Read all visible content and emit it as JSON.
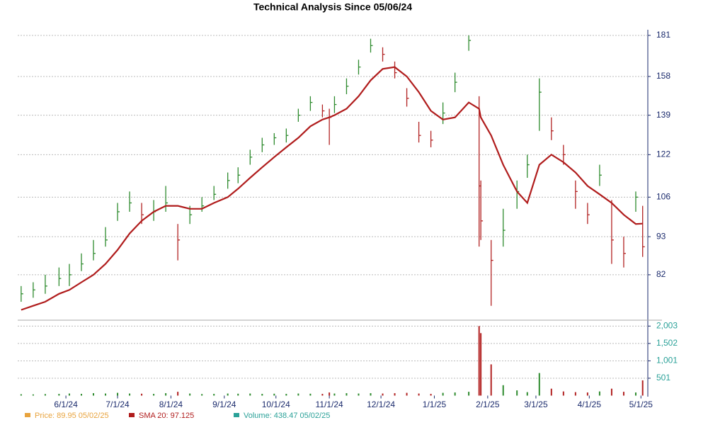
{
  "chart_data": {
    "type": "stock",
    "title": "Technical Analysis Since 05/06/24",
    "x": [
      "5/6/24",
      "5/13/24",
      "5/20/24",
      "5/28/24",
      "6/3/24",
      "6/10/24",
      "6/17/24",
      "6/24/24",
      "7/1/24",
      "7/8/24",
      "7/15/24",
      "7/22/24",
      "7/29/24",
      "8/5/24",
      "8/12/24",
      "8/19/24",
      "8/26/24",
      "9/3/24",
      "9/9/24",
      "9/16/24",
      "9/23/24",
      "9/30/24",
      "10/7/24",
      "10/14/24",
      "10/21/24",
      "10/28/24",
      "11/1/24",
      "11/4/24",
      "11/11/24",
      "11/18/24",
      "11/25/24",
      "12/2/24",
      "12/9/24",
      "12/16/24",
      "12/23/24",
      "12/30/24",
      "1/6/25",
      "1/13/25",
      "1/21/25",
      "1/27/25",
      "1/28/25",
      "2/3/25",
      "2/10/25",
      "2/18/25",
      "2/24/25",
      "3/3/25",
      "3/10/25",
      "3/17/25",
      "3/24/25",
      "3/31/25",
      "4/7/25",
      "4/14/25",
      "4/21/25",
      "4/28/25",
      "5/2/25"
    ],
    "xlim": [
      "5/4/24",
      "5/5/25"
    ],
    "xticks": [
      "6/1/24",
      "7/1/24",
      "8/1/24",
      "9/1/24",
      "10/1/24",
      "11/1/24",
      "12/1/24",
      "1/1/25",
      "2/1/25",
      "3/1/25",
      "4/1/25",
      "5/1/25"
    ],
    "ylim": [
      70.9,
      184.4
    ],
    "yticks": [
      82,
      93,
      106,
      122,
      139,
      158,
      181
    ],
    "log_y": true,
    "y2lim": [
      0,
      2112
    ],
    "y2ticks": [
      501,
      {
        "value": 1001,
        "label": "1,001"
      },
      {
        "value": 1502,
        "label": "1,502"
      },
      {
        "value": 2003,
        "label": "2,003"
      }
    ],
    "grid": true,
    "up_color": "#2e8b2e",
    "down_color": "#b22222",
    "series": [
      {
        "name": "Price: 89.95 05/02/25",
        "color": "#e8a33d",
        "close": [
          77,
          78,
          79,
          81,
          82,
          85,
          88,
          92,
          101,
          104,
          100,
          101,
          104,
          92,
          100,
          103,
          107,
          112,
          114,
          121,
          126,
          129,
          130,
          139,
          145,
          141,
          138,
          144,
          153,
          163,
          175,
          170,
          160,
          147,
          130,
          128,
          140,
          155,
          178,
          110,
          98,
          86,
          95,
          108,
          118,
          150,
          132,
          122,
          108,
          100,
          114,
          92,
          88,
          106,
          89.95
        ],
        "high": [
          79,
          80,
          82,
          84,
          85,
          88,
          92,
          96,
          104,
          108,
          104,
          105,
          110,
          97,
          103,
          106,
          110,
          115,
          117,
          124,
          129,
          131,
          133,
          142,
          148,
          144,
          142,
          148,
          157,
          167,
          179,
          174,
          166,
          152,
          136,
          132,
          145,
          160,
          181,
          148,
          112,
          92,
          102,
          112,
          122,
          157,
          138,
          126,
          112,
          104,
          118,
          105,
          93,
          108,
          103
        ],
        "low": [
          75,
          76,
          77,
          79,
          79,
          83,
          86,
          90,
          98,
          101,
          97,
          98,
          101,
          86,
          97,
          101,
          105,
          109,
          111,
          118,
          123,
          126,
          127,
          136,
          141,
          138,
          126,
          140,
          149,
          159,
          171,
          166,
          157,
          143,
          127,
          125,
          135,
          150,
          172,
          90,
          92,
          74,
          90,
          102,
          113,
          132,
          128,
          118,
          102,
          97,
          110,
          85,
          84,
          101,
          87
        ]
      },
      {
        "name": "SMA 20: 97.125",
        "color": "#b01c1c",
        "values": [
          73,
          74,
          75,
          77,
          78,
          80,
          82,
          85,
          89,
          94,
          98,
          101,
          103,
          103,
          102,
          102,
          104,
          106,
          109,
          113,
          117,
          121,
          125,
          129,
          134,
          137,
          138,
          139,
          142,
          148,
          156,
          162,
          163,
          158,
          150,
          141,
          137,
          138,
          145,
          142,
          138,
          130,
          118,
          108,
          104,
          118,
          122,
          119,
          115,
          110,
          107,
          104,
          100,
          97,
          97.125
        ]
      },
      {
        "name": "Volume: 438.47 05/02/25",
        "color": "#2aa198",
        "axis": "y2",
        "values": [
          40,
          35,
          45,
          50,
          60,
          50,
          70,
          60,
          80,
          60,
          55,
          50,
          70,
          110,
          60,
          45,
          50,
          60,
          55,
          60,
          50,
          55,
          50,
          60,
          55,
          50,
          90,
          60,
          70,
          60,
          70,
          60,
          70,
          80,
          60,
          50,
          80,
          90,
          110,
          2003,
          1800,
          900,
          300,
          150,
          100,
          650,
          200,
          120,
          100,
          90,
          120,
          200,
          110,
          90,
          438.47
        ]
      }
    ]
  }
}
